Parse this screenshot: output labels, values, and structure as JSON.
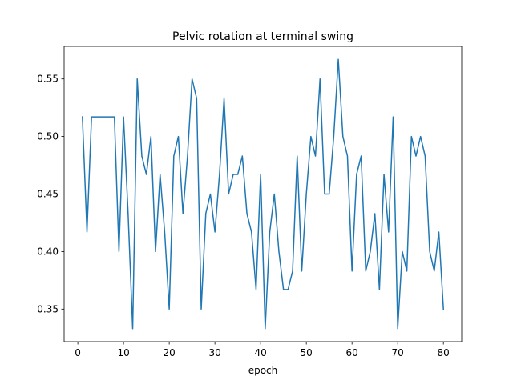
{
  "chart_data": {
    "type": "line",
    "title": "Pelvic rotation at terminal swing",
    "xlabel": "epoch",
    "ylabel": "",
    "xlim": [
      -3,
      84
    ],
    "ylim": [
      0.3217,
      0.5783
    ],
    "xticks": [
      0,
      10,
      20,
      30,
      40,
      50,
      60,
      70,
      80
    ],
    "yticks": [
      0.35,
      0.4,
      0.45,
      0.5,
      0.55
    ],
    "xtick_labels": [
      "0",
      "10",
      "20",
      "30",
      "40",
      "50",
      "60",
      "70",
      "80"
    ],
    "ytick_labels": [
      "0.35",
      "0.40",
      "0.45",
      "0.50",
      "0.55"
    ],
    "grid": false,
    "line_color": "#1f77b4",
    "series": [
      {
        "x": [
          1,
          2,
          3,
          4,
          5,
          6,
          7,
          8,
          9,
          10,
          11,
          12,
          13,
          14,
          15,
          16,
          17,
          18,
          19,
          20,
          21,
          22,
          23,
          24,
          25,
          26,
          27,
          28,
          29,
          30,
          31,
          32,
          33,
          34,
          35,
          36,
          37,
          38,
          39,
          40,
          41,
          42,
          43,
          44,
          45,
          46,
          47,
          48,
          49,
          50,
          51,
          52,
          53,
          54,
          55,
          56,
          57,
          58,
          59,
          60,
          61,
          62,
          63,
          64,
          65,
          66,
          67,
          68,
          69,
          70,
          71,
          72,
          73,
          74,
          75,
          76,
          77,
          78,
          79,
          80
        ],
        "values": [
          0.517,
          0.417,
          0.517,
          0.517,
          0.517,
          0.517,
          0.517,
          0.517,
          0.4,
          0.517,
          0.433,
          0.333,
          0.55,
          0.483,
          0.467,
          0.5,
          0.4,
          0.467,
          0.417,
          0.35,
          0.483,
          0.5,
          0.433,
          0.483,
          0.55,
          0.533,
          0.35,
          0.433,
          0.45,
          0.417,
          0.467,
          0.533,
          0.45,
          0.467,
          0.467,
          0.483,
          0.433,
          0.417,
          0.367,
          0.467,
          0.333,
          0.417,
          0.45,
          0.4,
          0.367,
          0.367,
          0.383,
          0.483,
          0.383,
          0.45,
          0.5,
          0.483,
          0.55,
          0.45,
          0.45,
          0.5,
          0.567,
          0.5,
          0.483,
          0.383,
          0.467,
          0.483,
          0.383,
          0.4,
          0.433,
          0.367,
          0.467,
          0.417,
          0.517,
          0.333,
          0.4,
          0.383,
          0.5,
          0.483,
          0.5,
          0.483,
          0.4,
          0.383,
          0.417,
          0.35
        ]
      }
    ]
  }
}
